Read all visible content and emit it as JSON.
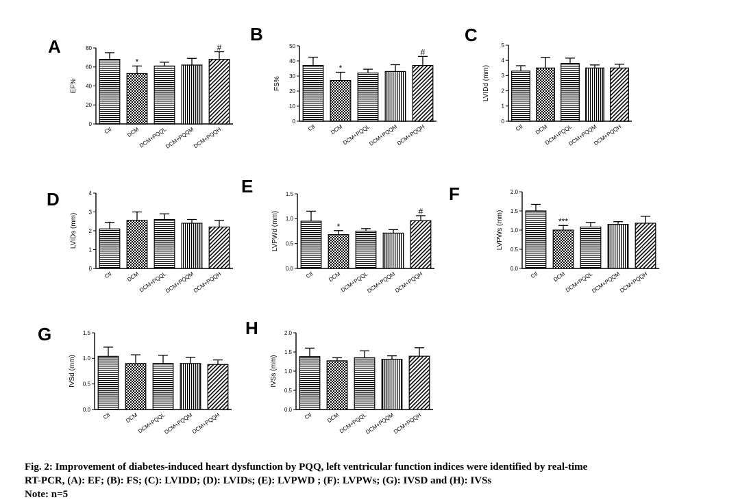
{
  "chart_data": [
    {
      "panel": "A",
      "type": "bar",
      "ylabel": "EF%",
      "ylim": [
        0,
        80
      ],
      "yticks": [
        "0",
        "20",
        "40",
        "60",
        "80"
      ],
      "ytick_values": [
        0,
        20,
        40,
        60,
        80
      ],
      "categories": [
        "Ctl",
        "DCM",
        "DCM+PQQL",
        "DCM+PQQM",
        "DCM+PQQH"
      ],
      "values": [
        68,
        53,
        61,
        62,
        68
      ],
      "errors": [
        7,
        8,
        4,
        7,
        8
      ],
      "annotations": [
        "",
        "*",
        "",
        "",
        "#"
      ],
      "patterns": [
        "hlines",
        "checker",
        "hlines",
        "vlines",
        "diag"
      ]
    },
    {
      "panel": "B",
      "type": "bar",
      "ylabel": "FS%",
      "ylim": [
        0,
        50
      ],
      "yticks": [
        "0",
        "10",
        "20",
        "30",
        "40",
        "50"
      ],
      "ytick_values": [
        0,
        10,
        20,
        30,
        40,
        50
      ],
      "categories": [
        "Ctl",
        "DCM",
        "DCM+PQQL",
        "DCM+PQQM",
        "DCM+PQQH"
      ],
      "values": [
        37,
        27,
        32,
        33,
        37
      ],
      "errors": [
        5.5,
        5.5,
        2.5,
        4.5,
        6
      ],
      "annotations": [
        "",
        "*",
        "",
        "",
        "#"
      ],
      "patterns": [
        "hlines",
        "checker",
        "hlines",
        "vlines",
        "diag"
      ]
    },
    {
      "panel": "C",
      "type": "bar",
      "ylabel": "LVIDd (mm)",
      "ylim": [
        0,
        5
      ],
      "yticks": [
        "0",
        "1",
        "2",
        "3",
        "4",
        "5"
      ],
      "ytick_values": [
        0,
        1,
        2,
        3,
        4,
        5
      ],
      "categories": [
        "Ctl",
        "DCM",
        "DCM+PQQL",
        "DCM+PQQM",
        "DCM+PQQH"
      ],
      "values": [
        3.3,
        3.5,
        3.8,
        3.5,
        3.5
      ],
      "errors": [
        0.35,
        0.7,
        0.35,
        0.2,
        0.25
      ],
      "annotations": [
        "",
        "",
        "",
        "",
        ""
      ],
      "patterns": [
        "hlines",
        "checker",
        "hlines",
        "vlines",
        "diag"
      ]
    },
    {
      "panel": "D",
      "type": "bar",
      "ylabel": "LVIDs (mm)",
      "ylim": [
        0,
        4
      ],
      "yticks": [
        "0",
        "1",
        "2",
        "3",
        "4"
      ],
      "ytick_values": [
        0,
        1,
        2,
        3,
        4
      ],
      "categories": [
        "Ctl",
        "DCM",
        "DCM+PQQL",
        "DCM+PQQM",
        "DCM+PQQH"
      ],
      "values": [
        2.1,
        2.55,
        2.6,
        2.4,
        2.2
      ],
      "errors": [
        0.35,
        0.45,
        0.3,
        0.2,
        0.35
      ],
      "annotations": [
        "",
        "",
        "",
        "",
        ""
      ],
      "patterns": [
        "hlines",
        "checker",
        "hlines",
        "vlines",
        "diag"
      ]
    },
    {
      "panel": "E",
      "type": "bar",
      "ylabel": "LVPWd (mm)",
      "ylim": [
        0,
        1.5
      ],
      "yticks": [
        "0.0",
        "0.5",
        "1.0",
        "1.5"
      ],
      "ytick_values": [
        0,
        0.5,
        1,
        1.5
      ],
      "categories": [
        "Ctl",
        "DCM",
        "DCM+PQQL",
        "DCM+PQQM",
        "DCM+PQQH"
      ],
      "values": [
        0.95,
        0.68,
        0.75,
        0.71,
        0.96
      ],
      "errors": [
        0.2,
        0.08,
        0.05,
        0.07,
        0.1
      ],
      "annotations": [
        "",
        "*",
        "",
        "",
        "#"
      ],
      "patterns": [
        "hlines",
        "checker",
        "hlines",
        "vlines",
        "diag"
      ]
    },
    {
      "panel": "F",
      "type": "bar",
      "ylabel": "LVPWs (mm)",
      "ylim": [
        0,
        2
      ],
      "yticks": [
        "0.0",
        "0.5",
        "1.0",
        "1.5",
        "2.0"
      ],
      "ytick_values": [
        0,
        0.5,
        1,
        1.5,
        2
      ],
      "categories": [
        "Ctl",
        "DCM",
        "DCM+PQQL",
        "DCM+PQQM",
        "DCM+PQQH"
      ],
      "values": [
        1.5,
        1.0,
        1.08,
        1.15,
        1.18
      ],
      "errors": [
        0.17,
        0.12,
        0.12,
        0.07,
        0.18
      ],
      "annotations": [
        "",
        "***",
        "",
        "",
        ""
      ],
      "patterns": [
        "hlines",
        "checker",
        "hlines",
        "vlines",
        "diag"
      ]
    },
    {
      "panel": "G",
      "type": "bar",
      "ylabel": "IVSd (mm)",
      "ylim": [
        0,
        1.5
      ],
      "yticks": [
        "0.0",
        "0.5",
        "1.0",
        "1.5"
      ],
      "ytick_values": [
        0,
        0.5,
        1,
        1.5
      ],
      "categories": [
        "Ctl",
        "DCM",
        "DCM+PQQL",
        "DCM+PQQM",
        "DCM+PQQH"
      ],
      "values": [
        1.04,
        0.9,
        0.9,
        0.9,
        0.88
      ],
      "errors": [
        0.18,
        0.17,
        0.16,
        0.12,
        0.09
      ],
      "annotations": [
        "",
        "",
        "",
        "",
        ""
      ],
      "patterns": [
        "hlines",
        "checker",
        "hlines",
        "vlines",
        "diag"
      ]
    },
    {
      "panel": "H",
      "type": "bar",
      "ylabel": "IVSs (mm)",
      "ylim": [
        0,
        2
      ],
      "yticks": [
        "0.0",
        "0.5",
        "1.0",
        "1.5",
        "2.0"
      ],
      "ytick_values": [
        0,
        0.5,
        1,
        1.5,
        2
      ],
      "categories": [
        "Ctl",
        "DCM",
        "DCM+PQQL",
        "DCM+PQQM",
        "DCM+PQQH"
      ],
      "values": [
        1.38,
        1.27,
        1.35,
        1.31,
        1.39
      ],
      "errors": [
        0.22,
        0.08,
        0.18,
        0.09,
        0.22
      ],
      "annotations": [
        "",
        "",
        "",
        "",
        ""
      ],
      "patterns": [
        "hlines",
        "checker",
        "hlines",
        "vlines",
        "diag"
      ]
    }
  ],
  "caption": {
    "line1": "Fig. 2: Improvement of diabetes-induced heart dysfunction by PQQ, left ventricular function indices were identified by real-time",
    "line2": "RT-PCR, (A): EF; (B): FS; (C): LVIDD; (D): LVIDs; (E): LVPWD ; (F): LVPWs; (G): IVSD and (H): IVSs",
    "note": "Note: n=5"
  }
}
